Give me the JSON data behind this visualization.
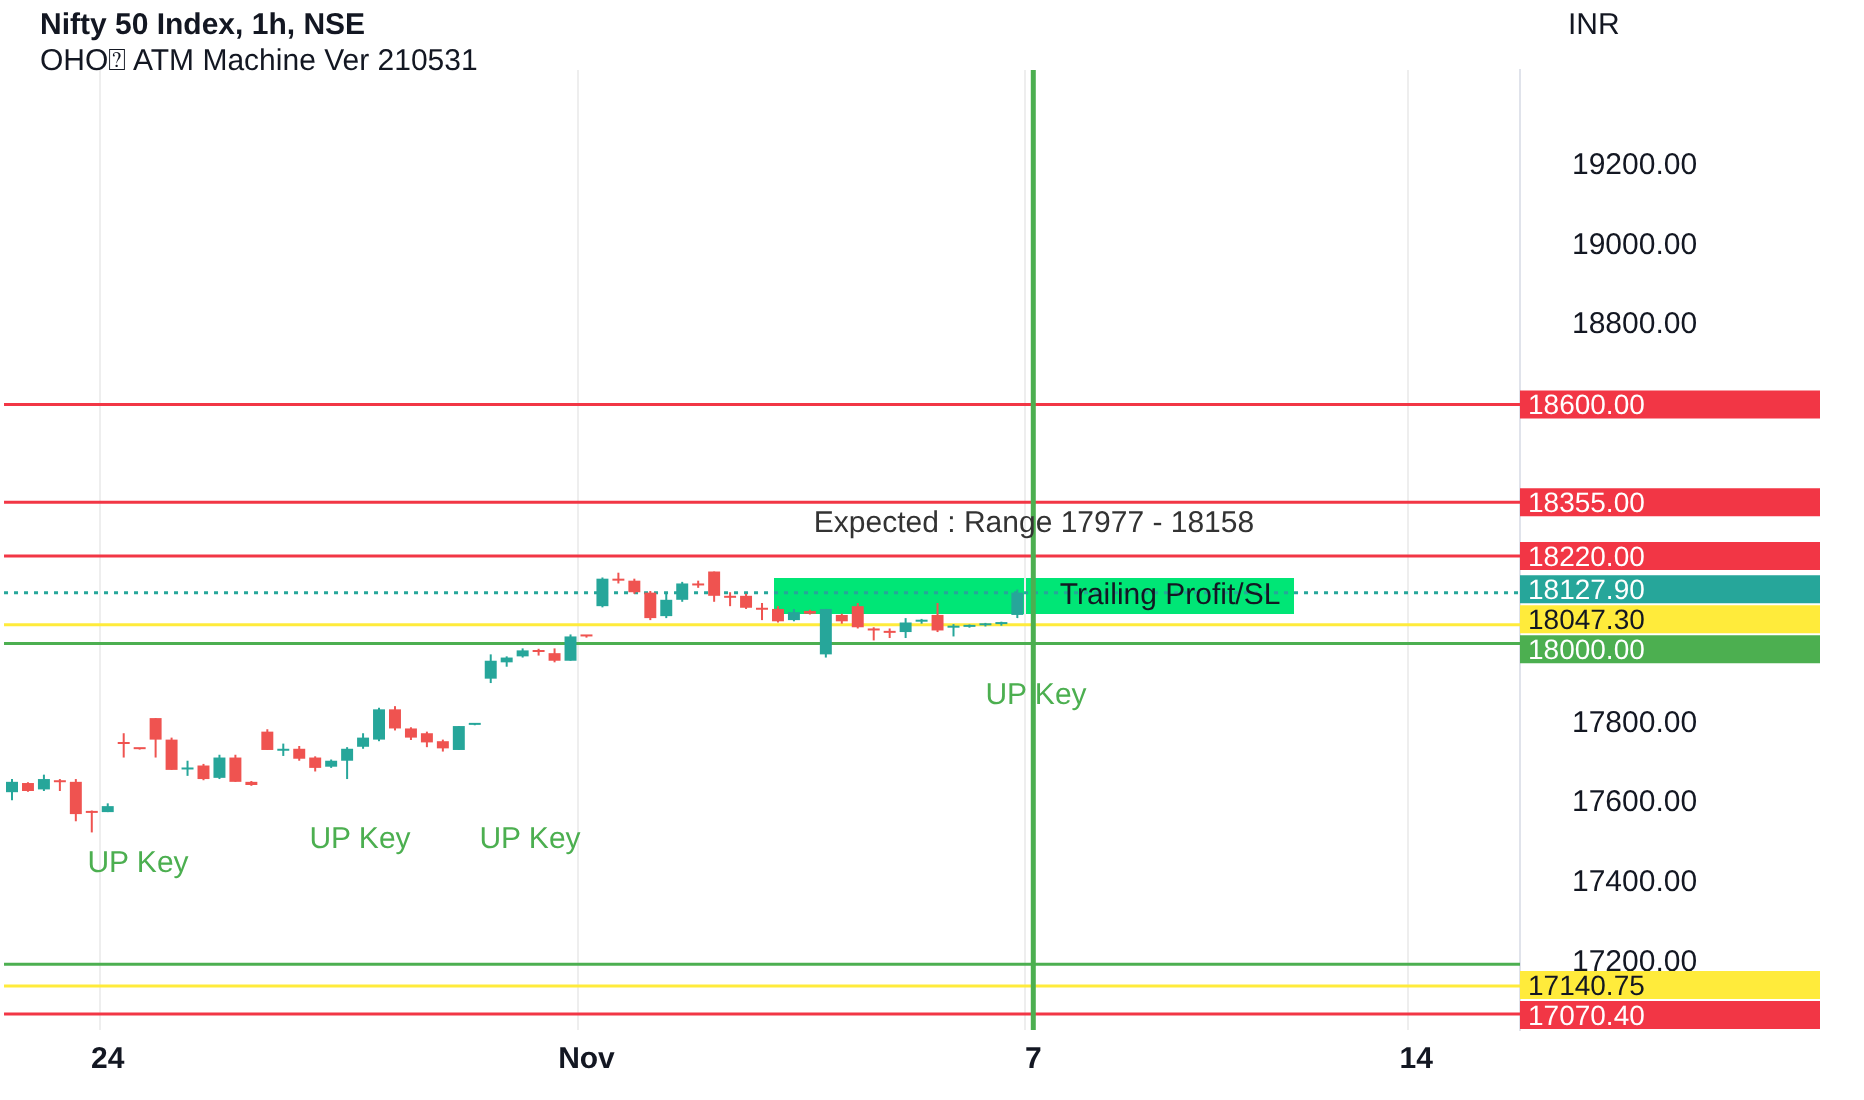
{
  "chart_data": {
    "type": "candlestick",
    "title": "Nifty 50 Index, 1h, NSE",
    "subtitle": "OHO⍰ ATM Machine Ver 210531",
    "ylabel": "INR",
    "categories": [
      null,
      null,
      null,
      null,
      null,
      null,
      "24",
      null,
      null,
      null,
      null,
      null,
      null,
      null,
      null,
      null,
      null,
      null,
      null,
      null,
      null,
      null,
      null,
      null,
      null,
      null,
      null,
      null,
      null,
      null,
      null,
      null,
      null,
      null,
      null,
      null,
      "Nov",
      null,
      null,
      null,
      null,
      null,
      null,
      null,
      null,
      null,
      null,
      null,
      null,
      null,
      null,
      null,
      null,
      null,
      null,
      null,
      null,
      null,
      null,
      null,
      null,
      null,
      null,
      null,
      "7",
      null,
      null,
      null,
      null,
      null,
      null,
      null,
      null,
      null,
      null,
      null,
      null,
      null,
      null,
      null,
      null,
      null,
      null,
      null,
      null,
      null,
      null,
      null,
      "14",
      null,
      null,
      null,
      null,
      null,
      null
    ],
    "ohlc": [
      [
        17627,
        17660,
        17607,
        17653
      ],
      [
        17650,
        17652,
        17628,
        17630
      ],
      [
        17634,
        17671,
        17630,
        17660
      ],
      [
        17655,
        17660,
        17630,
        17652
      ],
      [
        17653,
        17660,
        17554,
        17572
      ],
      [
        17578,
        17581,
        17526,
        17575
      ],
      [
        17577,
        17599,
        17577,
        17592
      ],
      [
        17752,
        17775,
        17714,
        17748
      ],
      [
        17737,
        17738,
        17734,
        17735
      ],
      [
        17813,
        17813,
        17714,
        17759
      ],
      [
        17759,
        17764,
        17683,
        17683
      ],
      [
        17684,
        17706,
        17668,
        17688
      ],
      [
        17694,
        17698,
        17657,
        17660
      ],
      [
        17663,
        17721,
        17660,
        17714
      ],
      [
        17714,
        17721,
        17653,
        17653
      ],
      [
        17653,
        17655,
        17643,
        17645
      ],
      [
        17779,
        17785,
        17733,
        17733
      ],
      [
        17731,
        17749,
        17718,
        17735
      ],
      [
        17736,
        17743,
        17706,
        17711
      ],
      [
        17714,
        17717,
        17679,
        17688
      ],
      [
        17691,
        17709,
        17688,
        17706
      ],
      [
        17706,
        17740,
        17660,
        17736
      ],
      [
        17741,
        17775,
        17736,
        17764
      ],
      [
        17759,
        17839,
        17755,
        17835
      ],
      [
        17835,
        17843,
        17782,
        17787
      ],
      [
        17787,
        17790,
        17758,
        17764
      ],
      [
        17775,
        17779,
        17740,
        17752
      ],
      [
        17755,
        17759,
        17729,
        17737
      ],
      [
        17733,
        17793,
        17733,
        17793
      ],
      [
        17796,
        17800,
        17795,
        17799
      ],
      [
        17912,
        17973,
        17901,
        17957
      ],
      [
        17953,
        17968,
        17942,
        17965
      ],
      [
        17968,
        17988,
        17965,
        17983
      ],
      [
        17982,
        17987,
        17970,
        17979
      ],
      [
        17976,
        17988,
        17953,
        17957
      ],
      [
        17957,
        18023,
        17957,
        18018
      ],
      [
        18020,
        18021,
        18015,
        18018
      ],
      [
        18094,
        18166,
        18091,
        18163
      ],
      [
        18162,
        18178,
        18151,
        18158
      ],
      [
        18158,
        18163,
        18125,
        18129
      ],
      [
        18128,
        18132,
        18059,
        18064
      ],
      [
        18069,
        18125,
        18064,
        18110
      ],
      [
        18110,
        18155,
        18105,
        18151
      ],
      [
        18150,
        18158,
        18140,
        18146
      ],
      [
        18181,
        18181,
        18105,
        18120
      ],
      [
        18119,
        18129,
        18094,
        18115
      ],
      [
        18120,
        18125,
        18087,
        18090
      ],
      [
        18088,
        18102,
        18059,
        18085
      ],
      [
        18087,
        18094,
        18053,
        18056
      ],
      [
        18059,
        18087,
        18056,
        18079
      ],
      [
        18082,
        18085,
        18073,
        18075
      ],
      [
        17973,
        18087,
        17965,
        18087
      ],
      [
        18072,
        18075,
        18050,
        18056
      ],
      [
        18094,
        18102,
        18038,
        18041
      ],
      [
        18036,
        18041,
        18008,
        18033
      ],
      [
        18030,
        18038,
        18014,
        18027
      ],
      [
        18029,
        18064,
        18014,
        18053
      ],
      [
        18055,
        18062,
        18050,
        18058
      ],
      [
        18072,
        18102,
        18029,
        18033
      ],
      [
        18040,
        18049,
        18018,
        18043
      ],
      [
        18042,
        18048,
        18040,
        18045
      ],
      [
        18046,
        18052,
        18043,
        18049
      ],
      [
        18049,
        18055,
        18045,
        18052
      ],
      [
        18072,
        18136,
        18064,
        18127.9
      ],
      null,
      null,
      null,
      null,
      null,
      null,
      null,
      null,
      null,
      null,
      null,
      null,
      null,
      null,
      null,
      null,
      null,
      null,
      null,
      null,
      null,
      null,
      null,
      null,
      null,
      null,
      null,
      null,
      null,
      null,
      null
    ],
    "ylim": [
      17030,
      19440
    ],
    "yticks": [
      {
        "value": 17200,
        "label": "17200.00"
      },
      {
        "value": 17400,
        "label": "17400.00"
      },
      {
        "value": 17600,
        "label": "17600.00"
      },
      {
        "value": 17800,
        "label": "17800.00"
      },
      {
        "value": 18800,
        "label": "18800.00"
      },
      {
        "value": 19000,
        "label": "19000.00"
      },
      {
        "value": 19200,
        "label": "19200.00"
      }
    ],
    "ref_lines": [
      {
        "axis": "y",
        "value": 18600,
        "label": "18600.00",
        "color": "#f23645"
      },
      {
        "axis": "y",
        "value": 18355,
        "label": "18355.00",
        "color": "#f23645"
      },
      {
        "axis": "y",
        "value": 18220,
        "label": "18220.00",
        "color": "#f23645"
      },
      {
        "axis": "y",
        "value": 18127.9,
        "label": "18127.90",
        "color": "#26a69a",
        "line_style": "dotted"
      },
      {
        "axis": "y",
        "value": 18047.3,
        "label": "18047.30",
        "color": "#ffeb3b"
      },
      {
        "axis": "y",
        "value": 18000,
        "label": "18000.00",
        "color": "#4caf50"
      },
      {
        "axis": "y",
        "value": 17195,
        "color": "#4caf50"
      },
      {
        "axis": "y",
        "value": 17140.75,
        "label": "17140.75",
        "color": "#ffeb3b"
      },
      {
        "axis": "y",
        "value": 17070.4,
        "label": "17070.40",
        "color": "#f23645"
      },
      {
        "axis": "x",
        "value": "7",
        "color": "#4caf50"
      }
    ],
    "annotations": [
      "Expected : Range 17977 - 18158",
      "Trailing Profit/SL",
      "UP Key",
      "UP Key",
      "UP Key",
      "UP Key"
    ],
    "grid": "x",
    "legend": false
  }
}
